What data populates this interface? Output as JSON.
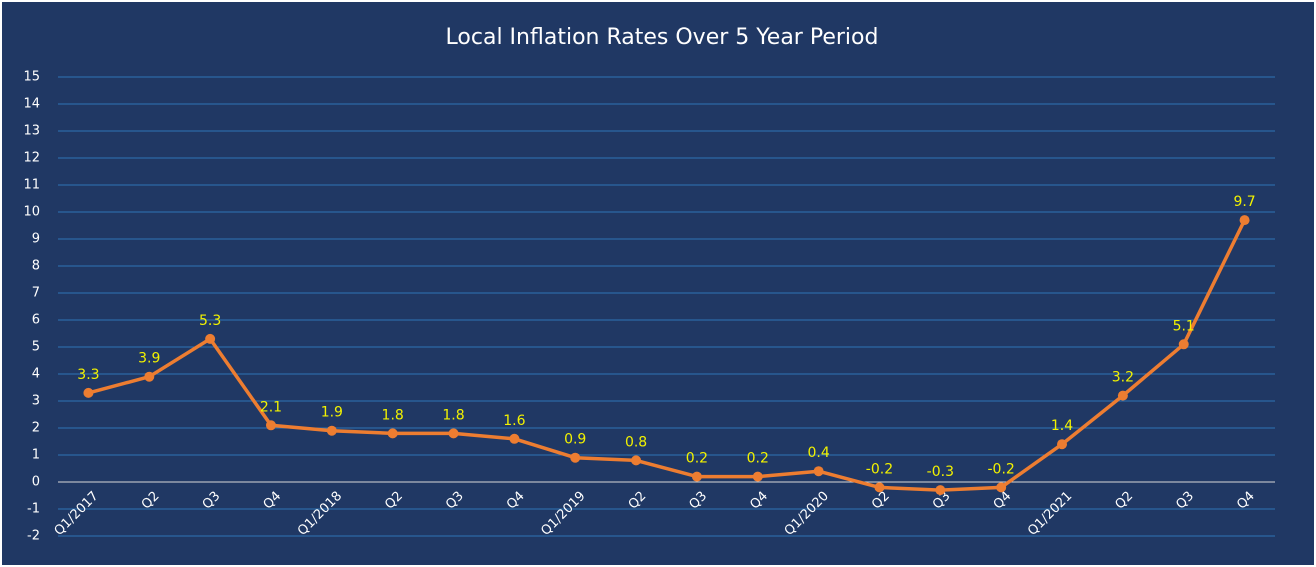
{
  "chart_data": {
    "type": "line",
    "title": "Local Inflation Rates Over 5 Year Period",
    "categories": [
      "Q1/2017",
      "Q2",
      "Q3",
      "Q4",
      "Q1/2018",
      "Q2",
      "Q3",
      "Q4",
      "Q1/2019",
      "Q2",
      "Q3",
      "Q4",
      "Q1/2020",
      "Q2",
      "Q3",
      "Q4",
      "Q1/2021",
      "Q2",
      "Q3",
      "Q4"
    ],
    "values": [
      3.3,
      3.9,
      5.3,
      2.1,
      1.9,
      1.8,
      1.8,
      1.6,
      0.9,
      0.8,
      0.2,
      0.2,
      0.4,
      -0.2,
      -0.3,
      -0.2,
      1.4,
      3.2,
      5.1,
      9.7
    ],
    "color": "#ed7d31",
    "ylim": [
      -2,
      15
    ],
    "yticks": [
      -2,
      -1,
      0,
      1,
      2,
      3,
      4,
      5,
      6,
      7,
      8,
      9,
      10,
      11,
      12,
      13,
      14,
      15
    ],
    "grid": true
  }
}
